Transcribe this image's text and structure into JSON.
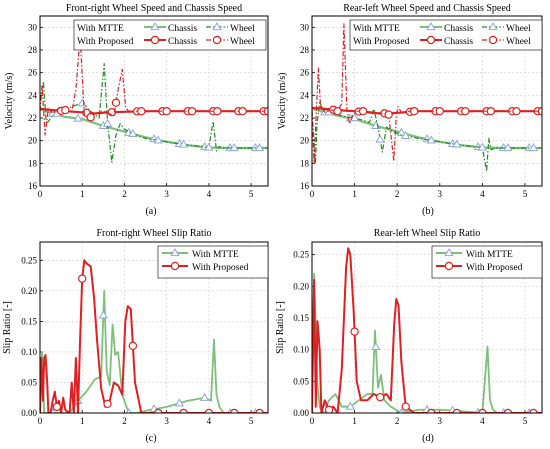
{
  "chart_data": [
    {
      "id": "a",
      "type": "line",
      "panel_label": "(a)",
      "title": "Front-right Wheel Speed and Chassis Speed",
      "ylabel": "Velocity (m/s)",
      "xlim": [
        0,
        5.4
      ],
      "ylim": [
        16,
        31
      ],
      "xticks": [
        "0",
        "1",
        "2",
        "3",
        "4",
        "5"
      ],
      "yticks": [
        "16",
        "18",
        "20",
        "22",
        "24",
        "26",
        "28",
        "30"
      ],
      "legend": {
        "rows": [
          {
            "label": "With MTTE",
            "items": [
              "Chassis",
              "Wheel"
            ]
          },
          {
            "label": "With Proposed",
            "items": [
              "Chassis",
              "Wheel"
            ]
          }
        ]
      },
      "series": [
        {
          "name": "Chassis",
          "group": "With MTTE",
          "color": "#7cc07c",
          "width": 2.2,
          "dash": "",
          "marker": "triangle",
          "x": [
            0,
            0.3,
            0.6,
            1.0,
            1.5,
            2.0,
            2.5,
            3.0,
            3.5,
            4.0,
            4.5,
            5.0,
            5.4
          ],
          "y": [
            22.8,
            22.4,
            22.1,
            21.9,
            21.3,
            20.8,
            20.3,
            19.9,
            19.6,
            19.4,
            19.35,
            19.35,
            19.35
          ]
        },
        {
          "name": "Wheel",
          "group": "With MTTE",
          "color": "#1e8c1e",
          "width": 1.2,
          "dash": "5,2,1.5,2",
          "marker": "triangle",
          "x": [
            0,
            0.08,
            0.15,
            0.22,
            0.3,
            0.5,
            0.7,
            0.9,
            1.0,
            1.2,
            1.4,
            1.52,
            1.6,
            1.7,
            1.8,
            1.9,
            2.0,
            2.2,
            2.5,
            3.0,
            3.5,
            4.0,
            4.1,
            4.18,
            4.25,
            4.3,
            5.4
          ],
          "y": [
            23.5,
            25.2,
            21.5,
            21.8,
            22.2,
            22.6,
            22.9,
            23.2,
            23.3,
            22.6,
            22.0,
            26.8,
            21.5,
            18.1,
            20.5,
            21.5,
            21.0,
            20.6,
            20.2,
            19.9,
            19.6,
            19.4,
            21.7,
            19.1,
            19.5,
            19.35,
            19.35
          ]
        },
        {
          "name": "Chassis",
          "group": "With Proposed",
          "color": "#e02020",
          "width": 2.2,
          "dash": "",
          "marker": "circle",
          "x": [
            0,
            0.3,
            0.6,
            1.0,
            1.3,
            1.6,
            2.0,
            2.5,
            3.0,
            3.5,
            4.0,
            4.5,
            5.0,
            5.4
          ],
          "y": [
            22.8,
            22.7,
            22.6,
            22.5,
            22.4,
            22.5,
            22.55,
            22.6,
            22.6,
            22.6,
            22.6,
            22.6,
            22.6,
            22.6
          ]
        },
        {
          "name": "Wheel",
          "group": "With Proposed",
          "color": "#e02020",
          "width": 1.2,
          "dash": "5,2,1.5,2",
          "marker": "circle",
          "x": [
            0,
            0.05,
            0.12,
            0.2,
            0.3,
            0.45,
            0.6,
            0.75,
            0.85,
            0.95,
            1.05,
            1.15,
            1.3,
            1.5,
            1.75,
            1.85,
            1.95,
            2.03,
            2.1,
            2.2,
            2.4,
            3.0,
            4.0,
            5.4
          ],
          "y": [
            22.6,
            24.9,
            20.5,
            22.9,
            22.4,
            22.9,
            22.7,
            22.5,
            24.5,
            29.2,
            22.3,
            21.9,
            22.4,
            22.6,
            22.2,
            24.5,
            26.3,
            22.9,
            22.6,
            22.6,
            22.6,
            22.6,
            22.6,
            22.6
          ]
        }
      ]
    },
    {
      "id": "b",
      "type": "line",
      "panel_label": "(b)",
      "title": "Rear-left Wheel Speed and Chassis Speed",
      "ylabel": "Velocity (m/s)",
      "xlim": [
        0,
        5.4
      ],
      "ylim": [
        16,
        31
      ],
      "xticks": [
        "0",
        "1",
        "2",
        "3",
        "4",
        "5"
      ],
      "yticks": [
        "16",
        "18",
        "20",
        "22",
        "24",
        "26",
        "28",
        "30"
      ],
      "legend": {
        "rows": [
          {
            "label": "With MTTE",
            "items": [
              "Chassis",
              "Wheel"
            ]
          },
          {
            "label": "With Proposed",
            "items": [
              "Chassis",
              "Wheel"
            ]
          }
        ]
      },
      "series": [
        {
          "name": "Chassis",
          "group": "With MTTE",
          "color": "#7cc07c",
          "width": 2.2,
          "dash": "",
          "marker": "triangle",
          "x": [
            0,
            0.3,
            0.6,
            1.0,
            1.5,
            2.0,
            2.5,
            3.0,
            3.5,
            4.0,
            4.5,
            5.0,
            5.4
          ],
          "y": [
            22.8,
            22.5,
            22.2,
            21.9,
            21.3,
            20.8,
            20.3,
            19.9,
            19.6,
            19.4,
            19.35,
            19.35,
            19.35
          ]
        },
        {
          "name": "Wheel",
          "group": "With MTTE",
          "color": "#1e8c1e",
          "width": 1.2,
          "dash": "5,2,1.5,2",
          "marker": "triangle",
          "x": [
            0,
            0.08,
            0.12,
            0.18,
            0.25,
            0.4,
            0.6,
            0.8,
            1.0,
            1.2,
            1.35,
            1.45,
            1.55,
            1.65,
            1.75,
            1.9,
            2.1,
            2.5,
            3.0,
            3.5,
            4.0,
            4.1,
            4.15,
            4.2,
            4.3,
            5.4
          ],
          "y": [
            22.6,
            18.0,
            21.5,
            23.4,
            22.8,
            22.5,
            22.3,
            22.1,
            22.0,
            21.8,
            21.6,
            22.8,
            21.2,
            19.0,
            21.2,
            20.8,
            20.5,
            20.2,
            19.9,
            19.6,
            19.4,
            17.3,
            20.2,
            19.2,
            19.35,
            19.35
          ]
        },
        {
          "name": "Chassis",
          "group": "With Proposed",
          "color": "#e02020",
          "width": 2.2,
          "dash": "",
          "marker": "circle",
          "x": [
            0,
            0.3,
            0.6,
            1.0,
            1.3,
            1.6,
            2.0,
            2.5,
            3.0,
            3.5,
            4.0,
            4.5,
            5.0,
            5.4
          ],
          "y": [
            22.9,
            22.8,
            22.7,
            22.6,
            22.5,
            22.4,
            22.45,
            22.6,
            22.6,
            22.6,
            22.6,
            22.6,
            22.6,
            22.6
          ]
        },
        {
          "name": "Wheel",
          "group": "With Proposed",
          "color": "#e02020",
          "width": 1.2,
          "dash": "5,2,1.5,2",
          "marker": "circle",
          "x": [
            0,
            0.05,
            0.1,
            0.15,
            0.2,
            0.3,
            0.45,
            0.6,
            0.7,
            0.75,
            0.82,
            0.88,
            0.95,
            1.05,
            1.2,
            1.5,
            1.8,
            1.92,
            1.98,
            2.02,
            2.1,
            2.3,
            3.0,
            4.0,
            5.4
          ],
          "y": [
            22.6,
            18.0,
            22.5,
            26.4,
            23.0,
            22.5,
            22.7,
            22.6,
            23.3,
            30.3,
            22.8,
            21.5,
            22.2,
            22.6,
            22.6,
            22.5,
            22.3,
            18.2,
            22.2,
            23.0,
            22.5,
            22.6,
            22.6,
            22.6,
            22.6
          ]
        }
      ]
    },
    {
      "id": "c",
      "type": "line",
      "panel_label": "(c)",
      "title": "Front-right Wheel Slip Ratio",
      "ylabel": "Slip Ratio [-]",
      "xlim": [
        0,
        5.4
      ],
      "ylim": [
        0,
        0.28
      ],
      "xticks": [
        "0",
        "1",
        "2",
        "3",
        "4",
        "5"
      ],
      "yticks": [
        "0.00",
        "0.05",
        "0.10",
        "0.15",
        "0.20",
        "0.25"
      ],
      "legend": {
        "rows": [
          {
            "label": "With MTTE",
            "items": []
          },
          {
            "label": "With Proposed",
            "items": []
          }
        ]
      },
      "series": [
        {
          "name": "With MTTE",
          "color": "#7cc07c",
          "width": 1.8,
          "dash": "",
          "marker": "triangle",
          "x": [
            0,
            0.05,
            0.1,
            0.15,
            0.25,
            0.35,
            0.5,
            0.7,
            0.9,
            1.1,
            1.3,
            1.45,
            1.52,
            1.58,
            1.65,
            1.72,
            1.78,
            1.85,
            1.95,
            2.1,
            2.3,
            2.6,
            3.0,
            3.5,
            3.9,
            4.05,
            4.12,
            4.18,
            4.25,
            4.35,
            5.4
          ],
          "y": [
            0.0,
            0.1,
            0.0,
            0.0,
            0.0,
            0.0,
            0.0,
            0.0,
            0.02,
            0.035,
            0.055,
            0.06,
            0.2,
            0.07,
            0.045,
            0.145,
            0.095,
            0.1,
            0.03,
            0.0,
            0.0,
            0.005,
            0.01,
            0.02,
            0.025,
            0.02,
            0.12,
            0.03,
            0.01,
            0.0,
            0.0
          ]
        },
        {
          "name": "With Proposed",
          "color": "#e02020",
          "width": 2.0,
          "dash": "",
          "marker": "circle",
          "x": [
            0,
            0.03,
            0.07,
            0.1,
            0.13,
            0.17,
            0.2,
            0.25,
            0.3,
            0.35,
            0.4,
            0.45,
            0.5,
            0.55,
            0.6,
            0.7,
            0.75,
            0.8,
            0.85,
            0.9,
            0.95,
            1.0,
            1.05,
            1.1,
            1.2,
            1.28,
            1.35,
            1.45,
            1.55,
            1.65,
            1.75,
            1.85,
            1.95,
            2.02,
            2.08,
            2.15,
            2.25,
            2.4,
            3.0,
            4.0,
            5.4
          ],
          "y": [
            0.0,
            0.09,
            0.02,
            0.09,
            0.095,
            0.05,
            0.0,
            0.0,
            0.02,
            0.035,
            0.01,
            0.02,
            0.0,
            0.025,
            0.005,
            0.0,
            0.05,
            0.0,
            0.09,
            0.0,
            0.12,
            0.22,
            0.25,
            0.245,
            0.24,
            0.19,
            0.12,
            0.04,
            0.01,
            0.02,
            0.05,
            0.045,
            0.03,
            0.15,
            0.175,
            0.17,
            0.05,
            0.0,
            0.0,
            0.0,
            0.0
          ]
        }
      ]
    },
    {
      "id": "d",
      "type": "line",
      "panel_label": "(d)",
      "title": "Rear-left Wheel Slip Ratio",
      "ylabel": "Slip Ratio [-]",
      "xlim": [
        0,
        5.4
      ],
      "ylim": [
        0,
        0.27
      ],
      "xticks": [
        "0",
        "1",
        "2",
        "3",
        "4",
        "5"
      ],
      "yticks": [
        "0.00",
        "0.05",
        "0.10",
        "0.15",
        "0.20",
        "0.25"
      ],
      "legend": {
        "rows": [
          {
            "label": "With MTTE",
            "items": []
          },
          {
            "label": "With Proposed",
            "items": []
          }
        ]
      },
      "series": [
        {
          "name": "With MTTE",
          "color": "#7cc07c",
          "width": 1.8,
          "dash": "",
          "marker": "triangle",
          "x": [
            0,
            0.05,
            0.08,
            0.12,
            0.18,
            0.25,
            0.4,
            0.55,
            0.7,
            0.9,
            1.1,
            1.3,
            1.42,
            1.48,
            1.55,
            1.62,
            1.7,
            1.85,
            2.1,
            2.5,
            3.0,
            3.5,
            4.0,
            4.12,
            4.18,
            4.25,
            4.35,
            5.4
          ],
          "y": [
            0.0,
            0.22,
            0.15,
            0.05,
            0.01,
            0.0,
            0.02,
            0.03,
            0.01,
            0.01,
            0.02,
            0.03,
            0.03,
            0.13,
            0.04,
            0.06,
            0.02,
            0.01,
            0.0,
            0.005,
            0.005,
            0.003,
            0.0,
            0.105,
            0.02,
            0.005,
            0.0,
            0.0
          ]
        },
        {
          "name": "With Proposed",
          "color": "#e02020",
          "width": 2.0,
          "dash": "",
          "marker": "circle",
          "x": [
            0,
            0.05,
            0.09,
            0.13,
            0.18,
            0.22,
            0.3,
            0.4,
            0.5,
            0.6,
            0.7,
            0.8,
            0.85,
            0.9,
            0.98,
            1.05,
            1.15,
            1.3,
            1.45,
            1.6,
            1.75,
            1.85,
            1.93,
            1.98,
            2.03,
            2.1,
            2.2,
            2.4,
            3.0,
            4.0,
            5.4
          ],
          "y": [
            0.0,
            0.21,
            0.01,
            0.145,
            0.1,
            0.0,
            0.02,
            0.005,
            0.01,
            0.0,
            0.07,
            0.23,
            0.26,
            0.25,
            0.16,
            0.05,
            0.02,
            0.02,
            0.03,
            0.025,
            0.03,
            0.02,
            0.14,
            0.18,
            0.17,
            0.08,
            0.01,
            0.0,
            0.0,
            0.0,
            0.0
          ]
        }
      ]
    }
  ]
}
